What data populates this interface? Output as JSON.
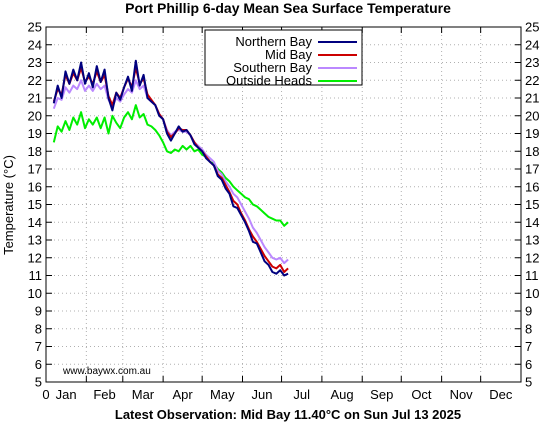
{
  "chart_data": {
    "type": "line",
    "title": "Port Phillip 6-day Mean Sea Surface Temperature",
    "ylabel": "Temperature (°C)",
    "xlabel": "",
    "footer": "Latest Observation: Mid Bay 11.40°C on Sun Jul 13 2025",
    "credit": "www.baywx.com.au",
    "x_unit": "day of year",
    "xlim": [
      0,
      365
    ],
    "ylim": [
      5,
      25
    ],
    "y_ticks": [
      5,
      6,
      7,
      8,
      9,
      10,
      11,
      12,
      13,
      14,
      15,
      16,
      17,
      18,
      19,
      20,
      21,
      22,
      23,
      24,
      25
    ],
    "x_ticks": [
      {
        "pos": 0,
        "label": "0"
      }
    ],
    "month_labels": [
      "Jan",
      "Feb",
      "Mar",
      "Apr",
      "May",
      "Jun",
      "Jul",
      "Aug",
      "Sep",
      "Oct",
      "Nov",
      "Dec"
    ],
    "grid": true,
    "legend_position": "top-center",
    "series": [
      {
        "name": "Northern Bay",
        "color": "#00007f",
        "points": [
          [
            6,
            20.7
          ],
          [
            9,
            21.7
          ],
          [
            12,
            21.0
          ],
          [
            15,
            22.5
          ],
          [
            18,
            21.8
          ],
          [
            21,
            22.6
          ],
          [
            24,
            22.0
          ],
          [
            27,
            23.0
          ],
          [
            30,
            21.8
          ],
          [
            33,
            22.4
          ],
          [
            36,
            21.6
          ],
          [
            39,
            22.8
          ],
          [
            42,
            21.9
          ],
          [
            45,
            22.6
          ],
          [
            48,
            21.0
          ],
          [
            51,
            20.3
          ],
          [
            54,
            21.3
          ],
          [
            57,
            20.9
          ],
          [
            60,
            21.6
          ],
          [
            63,
            22.2
          ],
          [
            66,
            21.4
          ],
          [
            69,
            23.1
          ],
          [
            72,
            21.7
          ],
          [
            75,
            22.3
          ],
          [
            78,
            21.0
          ],
          [
            81,
            20.8
          ],
          [
            84,
            20.6
          ],
          [
            87,
            20.0
          ],
          [
            90,
            19.8
          ],
          [
            93,
            19.0
          ],
          [
            96,
            18.6
          ],
          [
            99,
            19.0
          ],
          [
            102,
            19.4
          ],
          [
            105,
            19.1
          ],
          [
            108,
            19.2
          ],
          [
            111,
            18.9
          ],
          [
            114,
            18.4
          ],
          [
            117,
            18.2
          ],
          [
            120,
            18.0
          ],
          [
            123,
            17.6
          ],
          [
            126,
            17.4
          ],
          [
            129,
            17.2
          ],
          [
            132,
            16.6
          ],
          [
            135,
            16.4
          ],
          [
            138,
            15.9
          ],
          [
            141,
            15.6
          ],
          [
            144,
            14.9
          ],
          [
            147,
            14.8
          ],
          [
            150,
            14.4
          ],
          [
            153,
            14.0
          ],
          [
            156,
            13.5
          ],
          [
            159,
            12.9
          ],
          [
            162,
            12.8
          ],
          [
            165,
            12.3
          ],
          [
            168,
            11.8
          ],
          [
            171,
            11.6
          ],
          [
            174,
            11.2
          ],
          [
            177,
            11.1
          ],
          [
            180,
            11.3
          ],
          [
            183,
            11.0
          ],
          [
            186,
            11.1
          ]
        ]
      },
      {
        "name": "Mid Bay",
        "color": "#cc0000",
        "points": [
          [
            6,
            20.8
          ],
          [
            9,
            21.5
          ],
          [
            12,
            21.2
          ],
          [
            15,
            22.3
          ],
          [
            18,
            21.8
          ],
          [
            21,
            22.4
          ],
          [
            24,
            22.0
          ],
          [
            27,
            22.7
          ],
          [
            30,
            21.9
          ],
          [
            33,
            22.2
          ],
          [
            36,
            21.8
          ],
          [
            39,
            22.5
          ],
          [
            42,
            21.9
          ],
          [
            45,
            22.3
          ],
          [
            48,
            21.1
          ],
          [
            51,
            20.6
          ],
          [
            54,
            21.3
          ],
          [
            57,
            21.0
          ],
          [
            60,
            21.6
          ],
          [
            63,
            22.1
          ],
          [
            66,
            21.6
          ],
          [
            69,
            22.7
          ],
          [
            72,
            21.8
          ],
          [
            75,
            22.1
          ],
          [
            78,
            21.2
          ],
          [
            81,
            20.9
          ],
          [
            84,
            20.6
          ],
          [
            87,
            20.1
          ],
          [
            90,
            19.8
          ],
          [
            93,
            19.1
          ],
          [
            96,
            18.8
          ],
          [
            99,
            19.0
          ],
          [
            102,
            19.3
          ],
          [
            105,
            19.2
          ],
          [
            108,
            19.2
          ],
          [
            111,
            18.9
          ],
          [
            114,
            18.5
          ],
          [
            117,
            18.2
          ],
          [
            120,
            18.0
          ],
          [
            123,
            17.7
          ],
          [
            126,
            17.4
          ],
          [
            129,
            17.2
          ],
          [
            132,
            16.7
          ],
          [
            135,
            16.5
          ],
          [
            138,
            16.1
          ],
          [
            141,
            15.7
          ],
          [
            144,
            15.2
          ],
          [
            147,
            15.0
          ],
          [
            150,
            14.5
          ],
          [
            153,
            14.1
          ],
          [
            156,
            13.6
          ],
          [
            159,
            13.2
          ],
          [
            162,
            12.9
          ],
          [
            165,
            12.5
          ],
          [
            168,
            12.1
          ],
          [
            171,
            11.8
          ],
          [
            174,
            11.5
          ],
          [
            177,
            11.4
          ],
          [
            180,
            11.6
          ],
          [
            183,
            11.2
          ],
          [
            186,
            11.4
          ]
        ]
      },
      {
        "name": "Southern Bay",
        "color": "#bb88ff",
        "points": [
          [
            6,
            20.4
          ],
          [
            9,
            21.0
          ],
          [
            12,
            20.9
          ],
          [
            15,
            21.6
          ],
          [
            18,
            21.3
          ],
          [
            21,
            21.7
          ],
          [
            24,
            21.5
          ],
          [
            27,
            22.0
          ],
          [
            30,
            21.4
          ],
          [
            33,
            21.7
          ],
          [
            36,
            21.4
          ],
          [
            39,
            21.8
          ],
          [
            42,
            21.5
          ],
          [
            45,
            21.7
          ],
          [
            48,
            20.9
          ],
          [
            51,
            20.5
          ],
          [
            54,
            21.0
          ],
          [
            57,
            20.8
          ],
          [
            60,
            21.2
          ],
          [
            63,
            21.5
          ],
          [
            66,
            21.3
          ],
          [
            69,
            22.0
          ],
          [
            72,
            21.5
          ],
          [
            75,
            21.7
          ],
          [
            78,
            21.0
          ],
          [
            81,
            20.8
          ],
          [
            84,
            20.6
          ],
          [
            87,
            20.1
          ],
          [
            90,
            19.8
          ],
          [
            93,
            19.2
          ],
          [
            96,
            18.9
          ],
          [
            99,
            19.1
          ],
          [
            102,
            19.2
          ],
          [
            105,
            19.1
          ],
          [
            108,
            19.1
          ],
          [
            111,
            18.9
          ],
          [
            114,
            18.5
          ],
          [
            117,
            18.3
          ],
          [
            120,
            18.1
          ],
          [
            123,
            17.8
          ],
          [
            126,
            17.6
          ],
          [
            129,
            17.4
          ],
          [
            132,
            16.9
          ],
          [
            135,
            16.7
          ],
          [
            138,
            16.3
          ],
          [
            141,
            16.0
          ],
          [
            144,
            15.6
          ],
          [
            147,
            15.4
          ],
          [
            150,
            15.0
          ],
          [
            153,
            14.6
          ],
          [
            156,
            14.2
          ],
          [
            159,
            13.7
          ],
          [
            162,
            13.4
          ],
          [
            165,
            13.0
          ],
          [
            168,
            12.6
          ],
          [
            171,
            12.3
          ],
          [
            174,
            12.0
          ],
          [
            177,
            11.9
          ],
          [
            180,
            12.0
          ],
          [
            183,
            11.7
          ],
          [
            186,
            11.9
          ]
        ]
      },
      {
        "name": "Outside Heads",
        "color": "#00ee00",
        "points": [
          [
            6,
            18.5
          ],
          [
            9,
            19.4
          ],
          [
            12,
            19.1
          ],
          [
            15,
            19.7
          ],
          [
            18,
            19.2
          ],
          [
            21,
            19.9
          ],
          [
            24,
            19.5
          ],
          [
            27,
            20.2
          ],
          [
            30,
            19.3
          ],
          [
            33,
            19.8
          ],
          [
            36,
            19.5
          ],
          [
            39,
            19.9
          ],
          [
            42,
            19.3
          ],
          [
            45,
            19.9
          ],
          [
            48,
            19.0
          ],
          [
            51,
            20.0
          ],
          [
            54,
            19.6
          ],
          [
            57,
            19.3
          ],
          [
            60,
            19.9
          ],
          [
            63,
            20.2
          ],
          [
            66,
            19.8
          ],
          [
            69,
            20.6
          ],
          [
            72,
            19.9
          ],
          [
            75,
            20.1
          ],
          [
            78,
            19.5
          ],
          [
            81,
            19.4
          ],
          [
            84,
            19.2
          ],
          [
            87,
            18.9
          ],
          [
            90,
            18.5
          ],
          [
            93,
            18.0
          ],
          [
            96,
            17.9
          ],
          [
            99,
            18.1
          ],
          [
            102,
            18.0
          ],
          [
            105,
            18.3
          ],
          [
            108,
            18.1
          ],
          [
            111,
            18.3
          ],
          [
            114,
            18.0
          ],
          [
            117,
            18.1
          ],
          [
            120,
            17.8
          ],
          [
            123,
            17.7
          ],
          [
            126,
            17.4
          ],
          [
            129,
            17.3
          ],
          [
            132,
            17.0
          ],
          [
            135,
            16.8
          ],
          [
            138,
            16.5
          ],
          [
            141,
            16.3
          ],
          [
            144,
            16.0
          ],
          [
            147,
            15.8
          ],
          [
            150,
            15.6
          ],
          [
            153,
            15.4
          ],
          [
            156,
            15.3
          ],
          [
            159,
            15.0
          ],
          [
            162,
            14.9
          ],
          [
            165,
            14.7
          ],
          [
            168,
            14.5
          ],
          [
            171,
            14.3
          ],
          [
            174,
            14.2
          ],
          [
            177,
            14.1
          ],
          [
            180,
            14.1
          ],
          [
            183,
            13.8
          ],
          [
            186,
            14.0
          ]
        ]
      }
    ]
  }
}
